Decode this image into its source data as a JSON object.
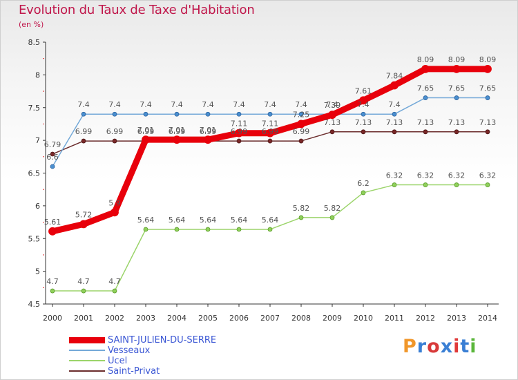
{
  "header": {
    "title": "Evolution du Taux de Taxe d'Habitation",
    "subtitle": "(en %)"
  },
  "logo": {
    "text": "Proxiti",
    "colors": [
      "#f0962a",
      "#3a7fd4",
      "#d83a3a",
      "#3a7fd4",
      "#e03a3a",
      "#3a7fd4",
      "#5ab63a"
    ]
  },
  "chart_data": {
    "type": "line",
    "title": "Evolution du Taux de Taxe d'Habitation",
    "ylabel": "(en %)",
    "xlabel": "",
    "ylim": [
      4.5,
      8.5
    ],
    "yticks": [
      4.5,
      5,
      5.5,
      6,
      6.5,
      7,
      7.5,
      8,
      8.5
    ],
    "ytick_labels": [
      "4.5",
      "5",
      "5.5",
      "6",
      "6.5",
      "7",
      "7.5",
      "8",
      "8.5"
    ],
    "categories": [
      "2000",
      "2001",
      "2002",
      "2003",
      "2004",
      "2005",
      "2006",
      "2007",
      "2008",
      "2009",
      "2010",
      "2011",
      "2012",
      "2013",
      "2014"
    ],
    "grid": false,
    "legend_position": "bottom-left",
    "series": [
      {
        "name": "SAINT-JULIEN-DU-SERRE",
        "color": "#e8000b",
        "values": [
          5.61,
          5.72,
          5.9,
          7.01,
          7.01,
          7.01,
          7.11,
          7.11,
          7.25,
          7.39,
          7.61,
          7.84,
          8.09,
          8.09,
          8.09
        ],
        "labels": [
          "5.61",
          "5.72",
          "5.9",
          "7.01",
          "7.01",
          "7.01",
          "7.11",
          "7.11",
          "7.25",
          "7.39",
          "7.61",
          "7.84",
          "8.09",
          "8.09",
          "8.09"
        ]
      },
      {
        "name": "Vesseaux",
        "color": "#74a9d8",
        "values": [
          6.6,
          7.4,
          7.4,
          7.4,
          7.4,
          7.4,
          7.4,
          7.4,
          7.4,
          7.4,
          7.4,
          7.4,
          7.65,
          7.65,
          7.65
        ],
        "labels": [
          "6.6",
          "7.4",
          "7.4",
          "7.4",
          "7.4",
          "7.4",
          "7.4",
          "7.4",
          "7.4",
          "7.4",
          "7.4",
          "7.4",
          "7.65",
          "7.65",
          "7.65"
        ]
      },
      {
        "name": "Ucel",
        "color": "#9bd46a",
        "values": [
          4.7,
          4.7,
          4.7,
          5.64,
          5.64,
          5.64,
          5.64,
          5.64,
          5.82,
          5.82,
          6.2,
          6.32,
          6.32,
          6.32,
          6.32
        ],
        "labels": [
          "4.7",
          "4.7",
          "4.7",
          "5.64",
          "5.64",
          "5.64",
          "5.64",
          "5.64",
          "5.82",
          "5.82",
          "6.2",
          "6.32",
          "6.32",
          "6.32",
          "6.32"
        ]
      },
      {
        "name": "Saint-Privat",
        "color": "#6b2c2c",
        "values": [
          6.79,
          6.99,
          6.99,
          6.99,
          6.99,
          6.99,
          6.99,
          6.99,
          6.99,
          7.13,
          7.13,
          7.13,
          7.13,
          7.13,
          7.13
        ],
        "labels": [
          "6.79",
          "6.99",
          "6.99",
          "6.99",
          "6.99",
          "6.99",
          "6.99",
          "6.99",
          "6.99",
          "7.13",
          "7.13",
          "7.13",
          "7.13",
          "7.13",
          "7.13"
        ]
      }
    ]
  }
}
